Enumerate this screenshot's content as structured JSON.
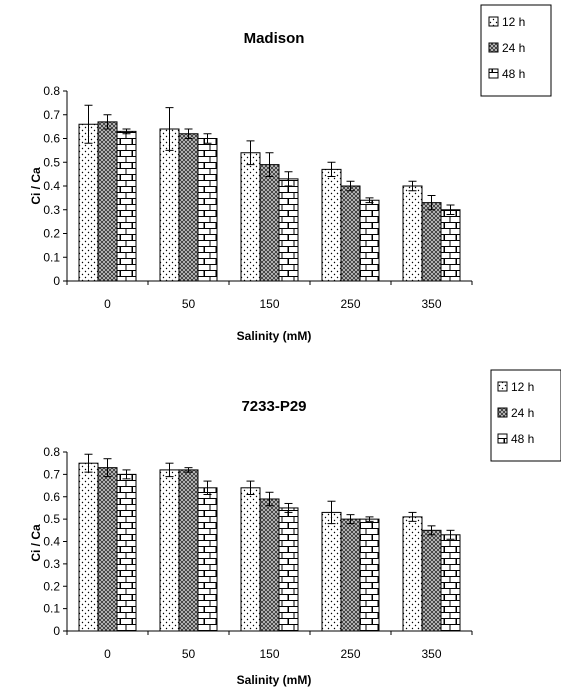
{
  "chart_data": [
    {
      "type": "bar",
      "title": "Madison",
      "xlabel": "Salinity (mM)",
      "ylabel": "Ci / Ca",
      "ylim": [
        0,
        0.8
      ],
      "yticks": [
        "0",
        "0.1",
        "0.2",
        "0.3",
        "0.4",
        "0.5",
        "0.6",
        "0.7",
        "0.8"
      ],
      "categories": [
        "0",
        "50",
        "150",
        "250",
        "350"
      ],
      "legend_position": "top-right",
      "series": [
        {
          "name": "12 h",
          "pattern": "dots",
          "values": [
            0.66,
            0.64,
            0.54,
            0.47,
            0.4
          ],
          "errors": [
            0.08,
            0.09,
            0.05,
            0.03,
            0.02
          ]
        },
        {
          "name": "24 h",
          "pattern": "crosshatch",
          "values": [
            0.67,
            0.62,
            0.49,
            0.4,
            0.33
          ],
          "errors": [
            0.03,
            0.02,
            0.05,
            0.02,
            0.03
          ]
        },
        {
          "name": "48 h",
          "pattern": "brick",
          "values": [
            0.63,
            0.6,
            0.43,
            0.34,
            0.3
          ],
          "errors": [
            0.01,
            0.02,
            0.03,
            0.01,
            0.02
          ]
        }
      ]
    },
    {
      "type": "bar",
      "title": "7233-P29",
      "xlabel": "Salinity (mM)",
      "ylabel": "Ci / Ca",
      "ylim": [
        0,
        0.8
      ],
      "yticks": [
        "0",
        "0.1",
        "0.2",
        "0.3",
        "0.4",
        "0.5",
        "0.6",
        "0.7",
        "0.8"
      ],
      "categories": [
        "0",
        "50",
        "150",
        "250",
        "350"
      ],
      "legend_position": "top-right",
      "series": [
        {
          "name": "12 h",
          "pattern": "dots",
          "values": [
            0.75,
            0.72,
            0.64,
            0.53,
            0.51
          ],
          "errors": [
            0.04,
            0.03,
            0.03,
            0.05,
            0.02
          ]
        },
        {
          "name": "24 h",
          "pattern": "crosshatch",
          "values": [
            0.73,
            0.72,
            0.59,
            0.5,
            0.45
          ],
          "errors": [
            0.04,
            0.01,
            0.03,
            0.02,
            0.02
          ]
        },
        {
          "name": "48 h",
          "pattern": "brick",
          "values": [
            0.7,
            0.64,
            0.55,
            0.5,
            0.43
          ],
          "errors": [
            0.02,
            0.03,
            0.02,
            0.01,
            0.02
          ]
        }
      ]
    }
  ]
}
